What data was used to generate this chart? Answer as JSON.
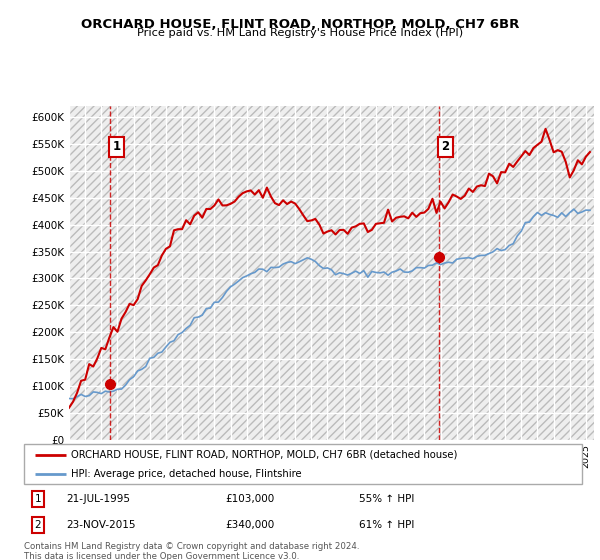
{
  "title": "ORCHARD HOUSE, FLINT ROAD, NORTHOP, MOLD, CH7 6BR",
  "subtitle": "Price paid vs. HM Land Registry's House Price Index (HPI)",
  "legend_line1": "ORCHARD HOUSE, FLINT ROAD, NORTHOP, MOLD, CH7 6BR (detached house)",
  "legend_line2": "HPI: Average price, detached house, Flintshire",
  "annotation1_label": "1",
  "annotation1_date": "21-JUL-1995",
  "annotation1_price": "£103,000",
  "annotation1_hpi": "55% ↑ HPI",
  "annotation2_label": "2",
  "annotation2_date": "23-NOV-2015",
  "annotation2_price": "£340,000",
  "annotation2_hpi": "61% ↑ HPI",
  "footer": "Contains HM Land Registry data © Crown copyright and database right 2024.\nThis data is licensed under the Open Government Licence v3.0.",
  "purchase1_x": 1995.55,
  "purchase1_y": 103000,
  "purchase2_x": 2015.9,
  "purchase2_y": 340000,
  "hpi_color": "#6699cc",
  "price_color": "#cc0000",
  "vline_color": "#cc0000",
  "grid_color": "#ffffff",
  "ylim": [
    0,
    620000
  ],
  "xlim": [
    1993,
    2025.5
  ],
  "yticks": [
    0,
    50000,
    100000,
    150000,
    200000,
    250000,
    300000,
    350000,
    400000,
    450000,
    500000,
    550000,
    600000
  ],
  "ytick_labels": [
    "£0",
    "£50K",
    "£100K",
    "£150K",
    "£200K",
    "£250K",
    "£300K",
    "£350K",
    "£400K",
    "£450K",
    "£500K",
    "£550K",
    "£600K"
  ]
}
